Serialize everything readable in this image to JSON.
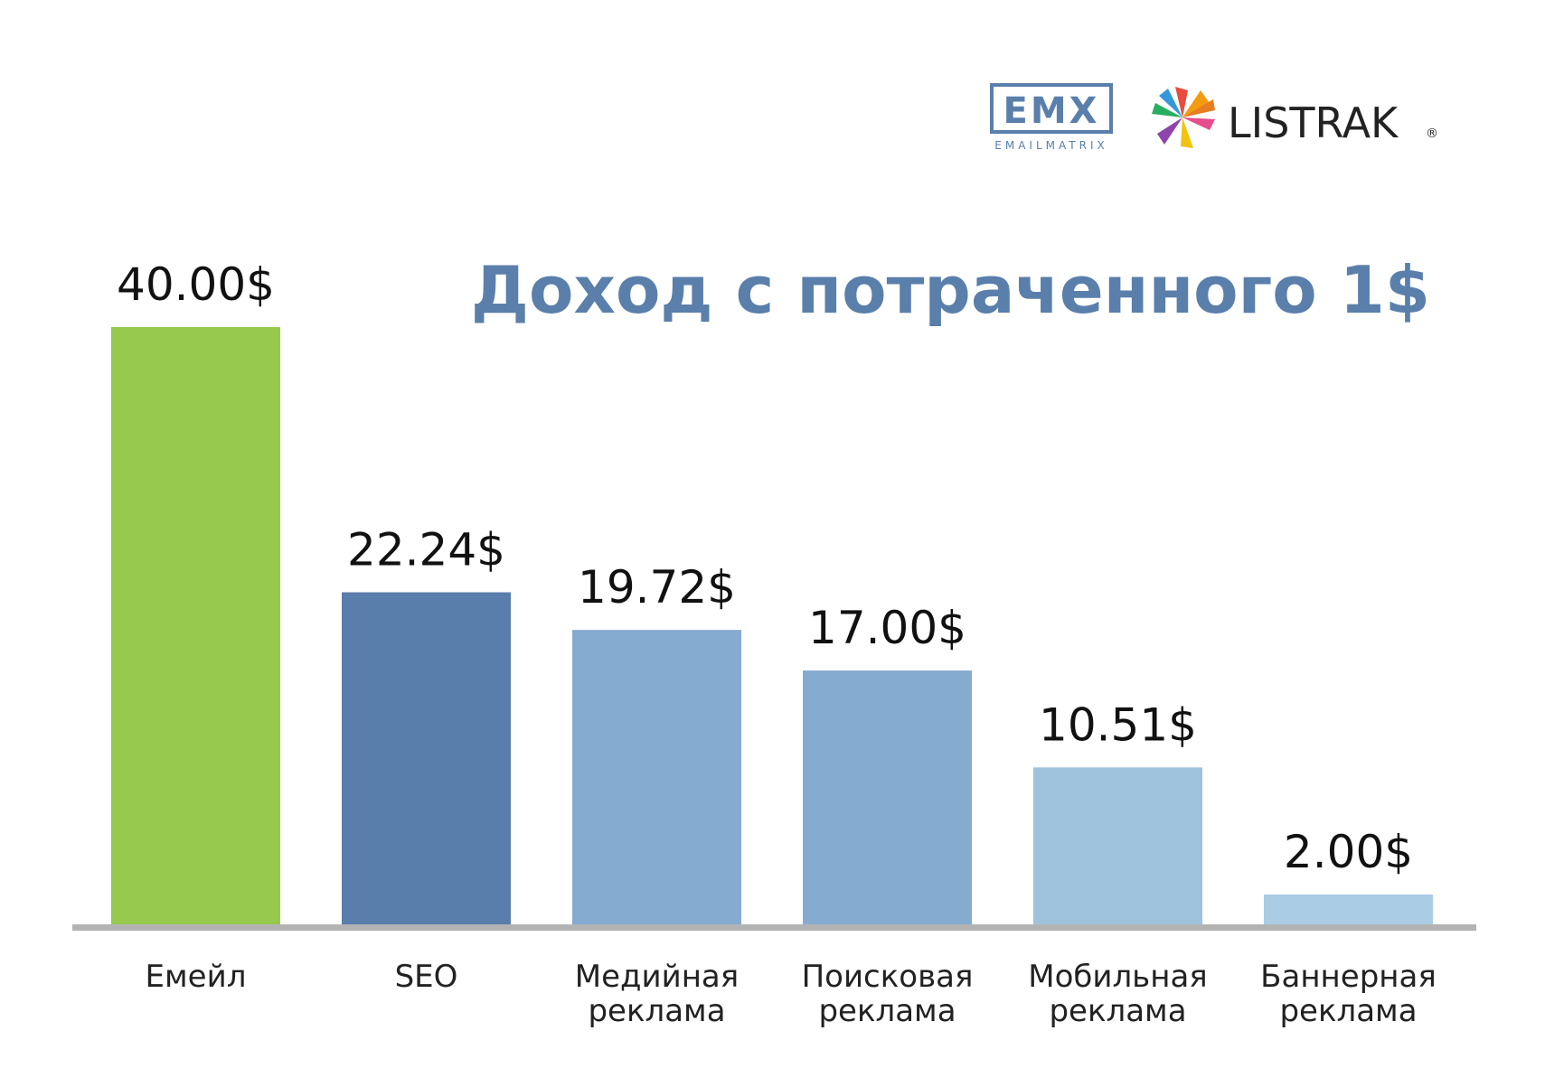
{
  "logos": {
    "emx": {
      "mark": "EMX",
      "sub": "EMAILMATRIX"
    },
    "listrak": {
      "name": "LISTRAK",
      "registered": "®",
      "icon": "listrak-star-icon"
    }
  },
  "chart_data": {
    "type": "bar",
    "title": "Доход с потраченного 1$",
    "xlabel": "",
    "ylabel": "",
    "ylim": [
      0,
      40
    ],
    "grid": false,
    "categories": [
      [
        "Емейл"
      ],
      [
        "SEO"
      ],
      [
        "Медийная",
        "реклама"
      ],
      [
        "Поисковая",
        "реклама"
      ],
      [
        "Мобильная",
        "реклама"
      ],
      [
        "Баннерная",
        "реклама"
      ]
    ],
    "values": [
      40.0,
      22.24,
      19.72,
      17.0,
      10.51,
      2.0
    ],
    "value_labels": [
      "40.00$",
      "22.24$",
      "19.72$",
      "17.00$",
      "10.51$",
      "2.00$"
    ],
    "colors": [
      "#96c94e",
      "#5a7eab",
      "#86abd0",
      "#86abd0",
      "#9fc2dc",
      "#aacde5"
    ],
    "baseline_color": "#b3b3b3"
  }
}
